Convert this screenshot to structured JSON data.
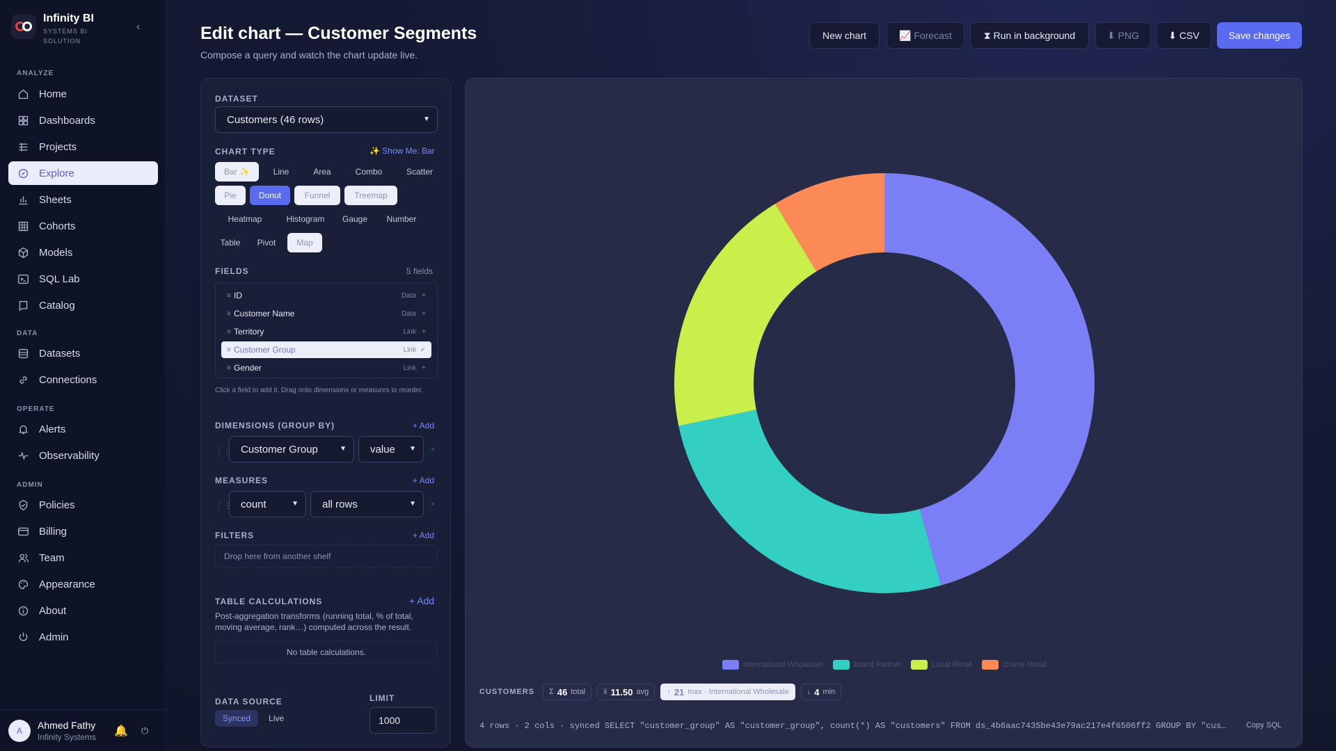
{
  "brand": {
    "name": "Infinity BI",
    "tagline": "SYSTEMS BI SOLUTION"
  },
  "nav": {
    "sections": {
      "analyze": "ANALYZE",
      "data": "DATA",
      "operate": "OPERATE",
      "admin": "ADMIN"
    },
    "items": [
      {
        "label": "Home",
        "icon": "home-icon"
      },
      {
        "label": "Dashboards",
        "icon": "dashboard-icon"
      },
      {
        "label": "Projects",
        "icon": "projects-icon"
      },
      {
        "label": "Explore",
        "icon": "compass-icon",
        "active": true
      },
      {
        "label": "Sheets",
        "icon": "bar-chart-icon"
      },
      {
        "label": "Cohorts",
        "icon": "grid-icon"
      },
      {
        "label": "Models",
        "icon": "cube-icon"
      },
      {
        "label": "SQL Lab",
        "icon": "terminal-icon"
      },
      {
        "label": "Catalog",
        "icon": "book-icon"
      },
      {
        "label": "Datasets",
        "icon": "database-icon"
      },
      {
        "label": "Connections",
        "icon": "link-icon"
      },
      {
        "label": "Alerts",
        "icon": "bell-icon"
      },
      {
        "label": "Observability",
        "icon": "pulse-icon"
      },
      {
        "label": "Policies",
        "icon": "shield-icon"
      },
      {
        "label": "Billing",
        "icon": "card-icon"
      },
      {
        "label": "Team",
        "icon": "users-icon"
      },
      {
        "label": "Appearance",
        "icon": "palette-icon"
      },
      {
        "label": "About",
        "icon": "info-icon"
      },
      {
        "label": "Admin",
        "icon": "power-icon"
      }
    ]
  },
  "user": {
    "initial": "A",
    "name": "Ahmed Fathy",
    "org": "Infinity Systems"
  },
  "header": {
    "title": "Edit chart — Customer Segments",
    "subtitle": "Compose a query and watch the chart update live.",
    "buttons": {
      "new_chart": "New chart",
      "forecast": "📈 Forecast",
      "run_background": "⧗ Run in background",
      "png": "⬇ PNG",
      "csv": "⬇ CSV",
      "save": "Save changes"
    }
  },
  "editor": {
    "dataset_label": "DATASET",
    "dataset_value": "Customers (46 rows)",
    "chart_type_label": "CHART TYPE",
    "show_me": "✨ Show Me: Bar",
    "chart_types": [
      {
        "label": "Bar ✨",
        "state": "light"
      },
      {
        "label": "Line",
        "state": "plain"
      },
      {
        "label": "Area",
        "state": "plain"
      },
      {
        "label": "Combo",
        "state": "plain"
      },
      {
        "label": "Scatter",
        "state": "plain"
      },
      {
        "label": "Pie",
        "state": "light"
      },
      {
        "label": "Donut",
        "state": "active"
      },
      {
        "label": "Funnel",
        "state": "light"
      },
      {
        "label": "Treemap",
        "state": "light"
      },
      {
        "label": "Heatmap",
        "state": "plain"
      },
      {
        "label": "Histogram",
        "state": "plain"
      },
      {
        "label": "Gauge",
        "state": "plain"
      },
      {
        "label": "Number",
        "state": "plain"
      },
      {
        "label": "Table",
        "state": "plain"
      },
      {
        "label": "Pivot",
        "state": "plain"
      },
      {
        "label": "Map",
        "state": "light"
      }
    ],
    "fields_label": "FIELDS",
    "fields_count": "5 fields",
    "fields": [
      {
        "name": "ID",
        "kind": "Data",
        "action": "+"
      },
      {
        "name": "Customer Name",
        "kind": "Data",
        "action": "+"
      },
      {
        "name": "Territory",
        "kind": "Link",
        "action": "+"
      },
      {
        "name": "Customer Group",
        "kind": "Link",
        "action": "✓",
        "selected": true
      },
      {
        "name": "Gender",
        "kind": "Link",
        "action": "+"
      }
    ],
    "fields_hint": "Click a field to add it. Drag onto dimensions or measures to reorder.",
    "dimensions_label": "DIMENSIONS (GROUP BY)",
    "dimension_field": "Customer Group",
    "dimension_mode": "value",
    "measures_label": "MEASURES",
    "measure_agg": "count",
    "measure_field": "all rows",
    "filters_label": "FILTERS",
    "filters_placeholder": "Drop here from another shelf",
    "add_label": "+ Add",
    "table_calc_label": "TABLE CALCULATIONS",
    "table_calc_desc": "Post-aggregation transforms (running total, % of total, moving average, rank…) computed across the result.",
    "table_calc_empty": "No table calculations.",
    "data_source_label": "DATA SOURCE",
    "data_source_options": [
      "Synced",
      "Live"
    ],
    "limit_label": "LIMIT",
    "limit_value": "1000",
    "remove_glyph": "×",
    "grip_glyph": "⋮⋮"
  },
  "chart_data": {
    "type": "pie",
    "variant": "donut",
    "categories": [
      "International Wholesale",
      "Brand Partner",
      "Local Retail",
      "Online Retail"
    ],
    "values": [
      21,
      12,
      9,
      4
    ],
    "colors": [
      "#7b7ff5",
      "#34cfc3",
      "#c9ef4a",
      "#fb8a56"
    ],
    "title": "",
    "legend": "bottom"
  },
  "stats": {
    "label": "CUSTOMERS",
    "total": {
      "symbol": "Σ",
      "value": "46",
      "suffix": "total"
    },
    "avg": {
      "symbol": "x̄",
      "value": "11.50",
      "suffix": "avg"
    },
    "max": {
      "symbol": "↑",
      "value": "21",
      "suffix": "max · International Wholesale"
    },
    "min": {
      "symbol": "↓",
      "value": "4",
      "suffix": "min"
    }
  },
  "query_info": "4 rows · 2 cols · synced   SELECT \"customer_group\" AS \"customer_group\", count(*) AS \"customers\" FROM ds_4b6aac7435be43e79ac217e4f6506ff2 GROUP BY \"customer_group\"",
  "copy_sql": "Copy SQL"
}
